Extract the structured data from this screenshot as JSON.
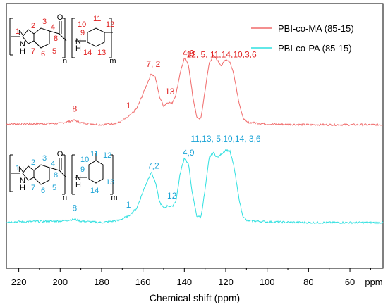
{
  "chart_data": {
    "type": "line",
    "xlabel": "Chemical shift (ppm)",
    "x_unit_label": "ppm",
    "xlim": [
      226,
      44
    ],
    "x_reversed": true,
    "x_ticks": [
      220,
      200,
      180,
      160,
      140,
      120,
      100,
      80,
      60
    ],
    "y_axis_shown": false,
    "grid": false,
    "legend_position": "top-right",
    "series": [
      {
        "name": "PBI-co-MA (85-15)",
        "color": "#f06a6a",
        "baseline_offset": 1,
        "x": [
          226,
          200,
          193,
          190,
          180,
          172,
          167,
          163,
          159,
          156,
          154,
          152,
          150,
          148,
          146,
          144,
          142,
          140,
          138,
          136,
          134,
          132,
          130,
          128,
          126,
          124,
          122,
          120,
          118,
          116,
          114,
          112,
          110,
          100,
          80,
          60,
          44
        ],
        "y": [
          0.02,
          0.03,
          0.08,
          0.04,
          0.01,
          0.04,
          0.13,
          0.26,
          0.56,
          0.8,
          0.74,
          0.44,
          0.3,
          0.36,
          0.34,
          0.48,
          0.82,
          1.03,
          0.94,
          0.46,
          0.12,
          0.1,
          0.54,
          0.96,
          1.08,
          1.0,
          0.92,
          1.02,
          0.98,
          0.78,
          0.42,
          0.14,
          0.05,
          0.02,
          0.01,
          0.01,
          0.01
        ]
      },
      {
        "name": "PBI-co-PA (85-15)",
        "color": "#2fe0e0",
        "baseline_offset": 0,
        "x": [
          226,
          200,
          193,
          190,
          180,
          172,
          167,
          163,
          159,
          156,
          154,
          152,
          150,
          148,
          146,
          144,
          142,
          140,
          138,
          136,
          134,
          132,
          130,
          128,
          126,
          124,
          122,
          120,
          118,
          116,
          114,
          112,
          110,
          100,
          80,
          60,
          44
        ],
        "y": [
          0.01,
          0.02,
          0.05,
          0.02,
          0.0,
          0.03,
          0.1,
          0.22,
          0.56,
          0.78,
          0.62,
          0.32,
          0.22,
          0.26,
          0.24,
          0.34,
          0.76,
          1.0,
          0.9,
          0.42,
          0.1,
          0.08,
          0.5,
          1.0,
          1.08,
          1.0,
          1.06,
          1.12,
          1.1,
          0.86,
          0.44,
          0.12,
          0.03,
          0.01,
          0.0,
          0.0,
          0.0
        ]
      }
    ],
    "annotations": [
      {
        "series": 0,
        "x": 193,
        "text": "8"
      },
      {
        "series": 0,
        "x": 167,
        "text": "1"
      },
      {
        "series": 0,
        "x": 155,
        "text": "7, 2"
      },
      {
        "series": 0,
        "x": 147,
        "text": "13"
      },
      {
        "series": 0,
        "x": 138,
        "text": "4,9"
      },
      {
        "series": 0,
        "x": 122,
        "text": "12, 5, 11,14,10,3,6"
      },
      {
        "series": 1,
        "x": 193,
        "text": "8"
      },
      {
        "series": 1,
        "x": 167,
        "text": "1"
      },
      {
        "series": 1,
        "x": 155,
        "text": "7,2"
      },
      {
        "series": 1,
        "x": 146,
        "text": "12"
      },
      {
        "series": 1,
        "x": 138,
        "text": "4,9"
      },
      {
        "series": 1,
        "x": 120,
        "text": "11,13, 5,10,14, 3,6"
      }
    ]
  },
  "structure_top": {
    "atom_labels": [
      "1",
      "2",
      "3",
      "4",
      "8",
      "5",
      "6",
      "7",
      "9",
      "10",
      "11",
      "12",
      "13",
      "14"
    ],
    "N_top": "N",
    "N_bottom": "N",
    "H_bottom": "H",
    "carbonyl_O": "O",
    "amide_N": "N",
    "amide_H": "H",
    "subscript_n": "n",
    "subscript_m": "m"
  },
  "structure_bottom": {
    "atom_labels": [
      "1",
      "2",
      "3",
      "4",
      "8",
      "5",
      "6",
      "7",
      "9",
      "10",
      "11",
      "12",
      "13",
      "14"
    ],
    "N_top": "N",
    "N_bottom": "N",
    "H_bottom": "H",
    "carbonyl_O": "O",
    "amide_N": "N",
    "amide_H": "H",
    "subscript_n": "n",
    "subscript_m": "m"
  }
}
